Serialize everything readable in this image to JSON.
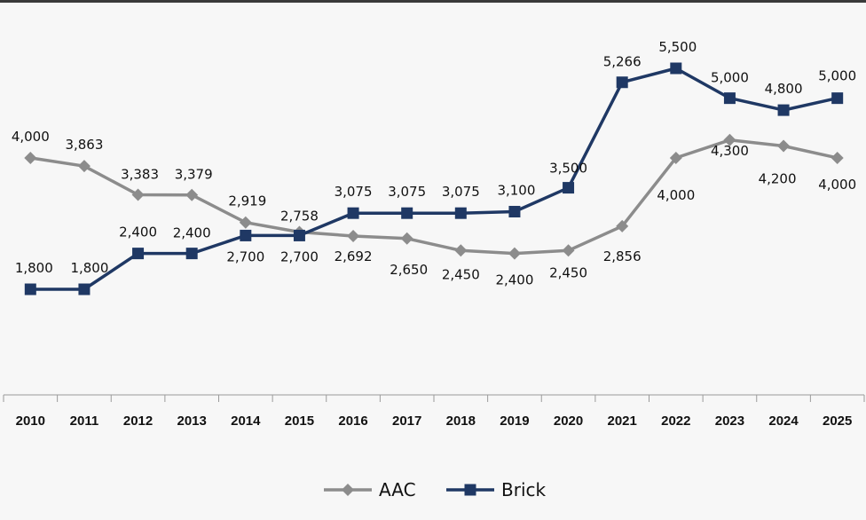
{
  "chart_data": {
    "type": "line",
    "x": [
      "2010",
      "2011",
      "2012",
      "2013",
      "2014",
      "2015",
      "2016",
      "2017",
      "2018",
      "2019",
      "2020",
      "2021",
      "2022",
      "2023",
      "2024",
      "2025"
    ],
    "series": [
      {
        "name": "AAC",
        "color": "#8c8c8c",
        "marker": "diamond",
        "values": [
          4000,
          3863,
          3383,
          3379,
          2919,
          2758,
          2692,
          2650,
          2450,
          2400,
          2450,
          2856,
          4000,
          4300,
          4200,
          4000
        ],
        "labels": [
          "4,000",
          "3,863",
          "3,383",
          "3,379",
          "2,919",
          "2,758",
          "2,692",
          "2,650",
          "2,450",
          "2,400",
          "2,450",
          "2,856",
          "4,000",
          "4,300",
          "4,200",
          "4,000"
        ]
      },
      {
        "name": "Brick",
        "color": "#1f3864",
        "marker": "square",
        "values": [
          1800,
          1800,
          2400,
          2400,
          2700,
          2700,
          3075,
          3075,
          3075,
          3100,
          3500,
          5266,
          5500,
          5000,
          4800,
          5000
        ],
        "labels": [
          "1,800",
          "1,800",
          "2,400",
          "2,400",
          "2,700",
          "2,700",
          "3,075",
          "3,075",
          "3,075",
          "3,100",
          "3,500",
          "5,266",
          "5,500",
          "5,000",
          "4,800",
          "5,000"
        ]
      }
    ],
    "title": "",
    "xlabel": "",
    "ylabel": "",
    "ylim": [
      0,
      6000
    ],
    "grid": false,
    "legend_position": "bottom"
  }
}
